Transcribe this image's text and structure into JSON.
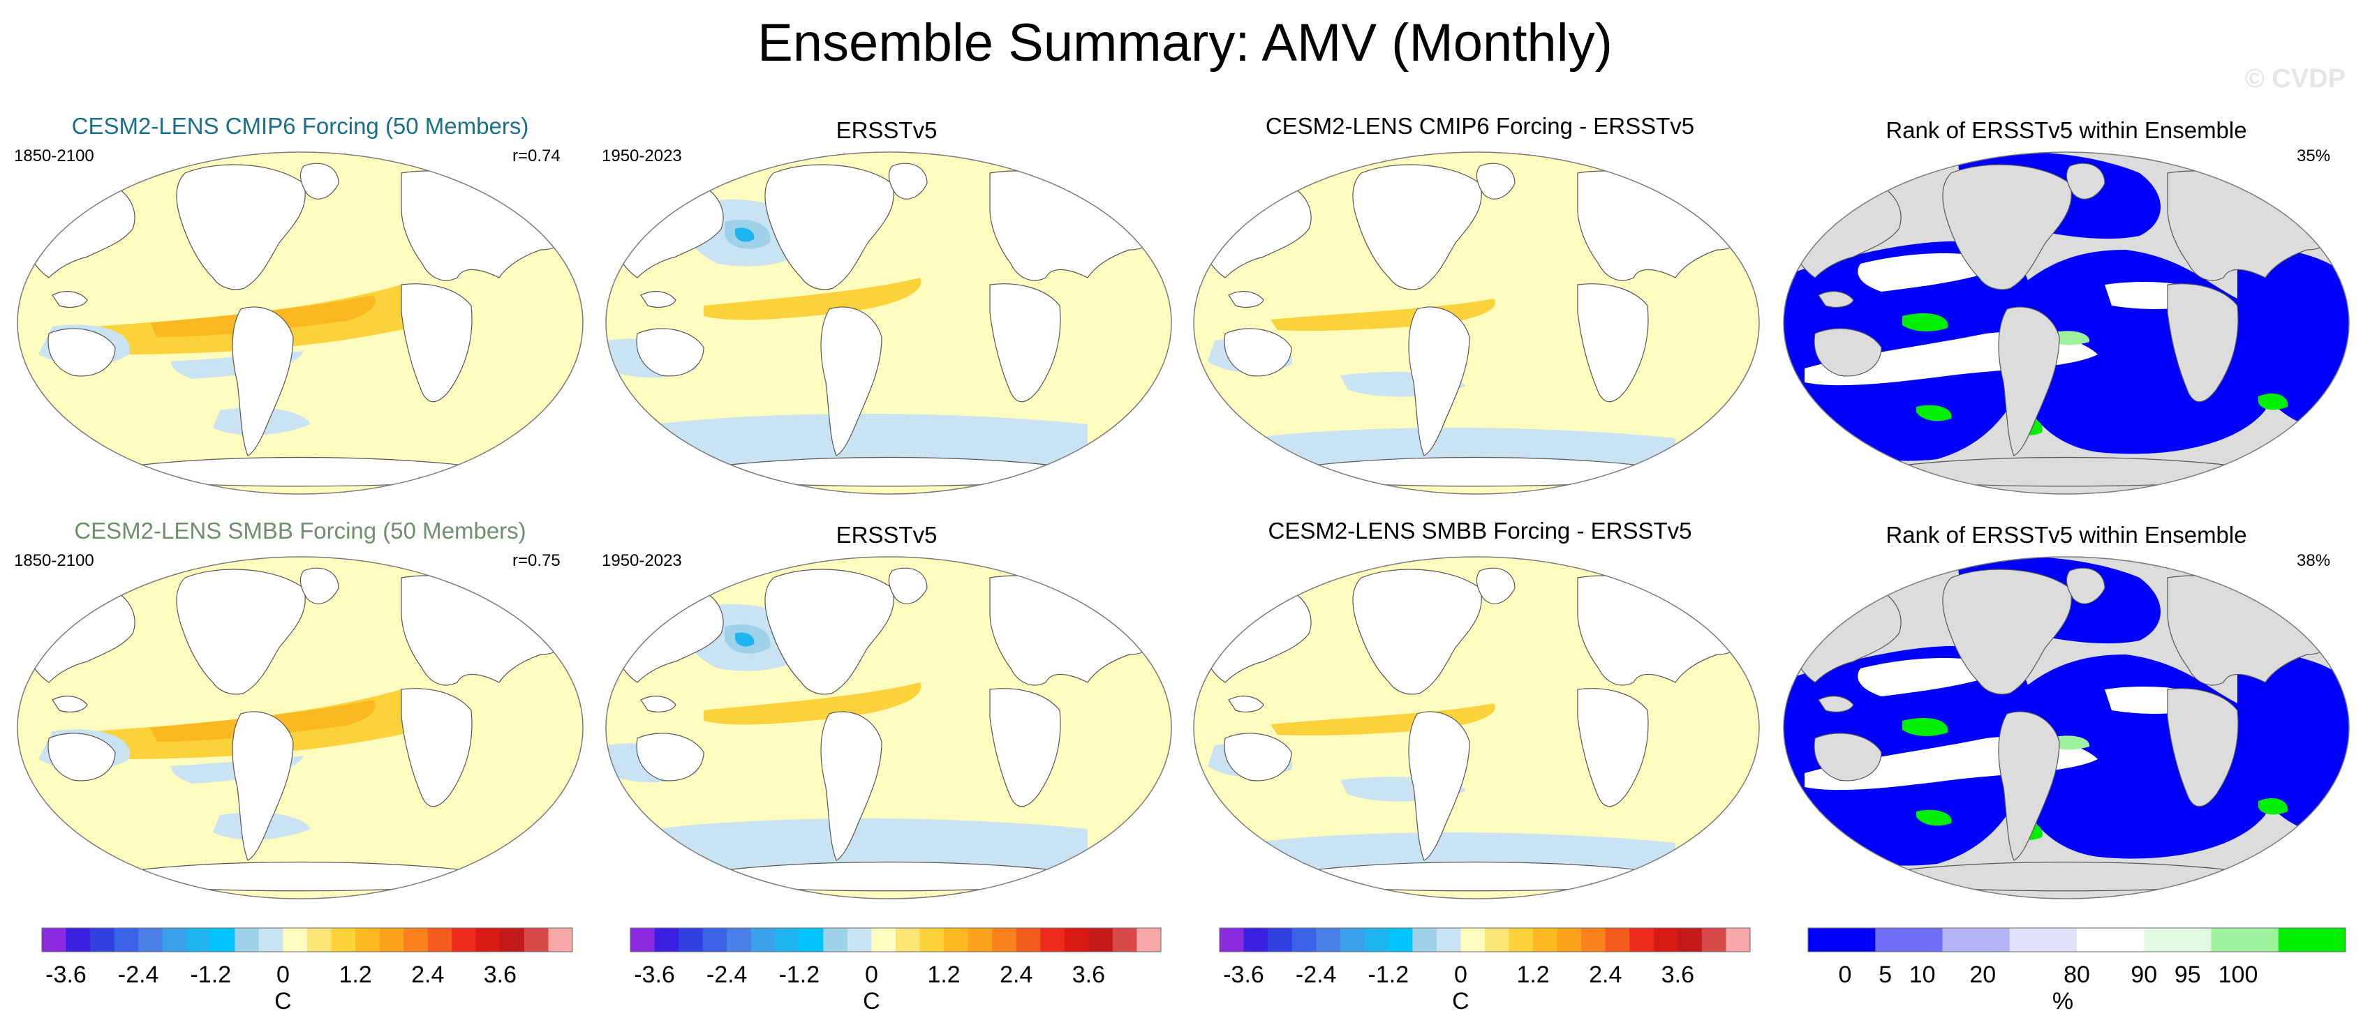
{
  "title": "Ensemble Summary: AMV (Monthly)",
  "watermark": "© CVDP",
  "rows": [
    {
      "panels": [
        {
          "kind": "model",
          "title": "CESM2-LENS CMIP6 Forcing (50 Members)",
          "title_color": "#1a6f8a",
          "left_label": "1850-2100",
          "right_label": "r=0.74"
        },
        {
          "kind": "obs",
          "title": "ERSSTv5",
          "left_label": "1950-2023",
          "right_label": ""
        },
        {
          "kind": "diff",
          "title": "CESM2-LENS CMIP6 Forcing - ERSSTv5",
          "left_label": "",
          "right_label": ""
        },
        {
          "kind": "rank",
          "title": "Rank of ERSSTv5 within Ensemble",
          "left_label": "",
          "right_label": "35%"
        }
      ]
    },
    {
      "panels": [
        {
          "kind": "model",
          "title": "CESM2-LENS SMBB Forcing (50 Members)",
          "title_color": "#6f8f6f",
          "left_label": "1850-2100",
          "right_label": "r=0.75"
        },
        {
          "kind": "obs",
          "title": "ERSSTv5",
          "left_label": "1950-2023",
          "right_label": ""
        },
        {
          "kind": "diff",
          "title": "CESM2-LENS SMBB Forcing - ERSSTv5",
          "left_label": "",
          "right_label": ""
        },
        {
          "kind": "rank",
          "title": "Rank of ERSSTv5 within Ensemble",
          "left_label": "",
          "right_label": "38%"
        }
      ]
    }
  ],
  "colorbar_temp": {
    "colors": [
      "#8a2be2",
      "#3b1fe0",
      "#2f3fe0",
      "#3a62e6",
      "#4a7fe8",
      "#3aa0ea",
      "#1fb4f0",
      "#00c4ff",
      "#9dd2ea",
      "#c9e3f2",
      "#fffcbf",
      "#fbe576",
      "#fbd23a",
      "#fcb821",
      "#fba21a",
      "#f9821c",
      "#f45c1e",
      "#ec2b1c",
      "#d81914",
      "#c11a18",
      "#d94a4a",
      "#f6a7a7"
    ],
    "ticks": [
      "-3.6",
      "-2.4",
      "-1.2",
      "0",
      "1.2",
      "2.4",
      "3.6"
    ],
    "tick_boundaries": [
      1,
      4,
      7,
      10,
      13,
      16,
      19
    ],
    "unit": "C"
  },
  "colorbar_rank": {
    "colors": [
      "#0000ff",
      "#6e6ef7",
      "#b4b4f4",
      "#e1e1fa",
      "#ffffff",
      "#e0f9e0",
      "#9ef29e",
      "#00ee00"
    ],
    "ticks": [
      "0",
      "5",
      "10",
      "20",
      "80",
      "90",
      "95",
      "100"
    ],
    "tick_positions": [
      0.55,
      1.15,
      1.7,
      2.6,
      4.0,
      5.0,
      5.65,
      6.4
    ],
    "unit": "%"
  },
  "map_colors": {
    "land": "#ffffff",
    "rank_land": "#dcdcdc",
    "light_yellow": "#fffcbf",
    "yellow": "#fbd23a",
    "orange_light": "#fcb821",
    "orange": "#f9821c",
    "red_orange": "#f45c1e",
    "light_blue": "#c9e3f2",
    "blue": "#9dd2ea",
    "blue_strong": "#1fb4f0",
    "rank_blue": "#0000ff",
    "rank_white": "#ffffff",
    "rank_green": "#00ee00",
    "rank_light_green": "#9ef29e"
  }
}
